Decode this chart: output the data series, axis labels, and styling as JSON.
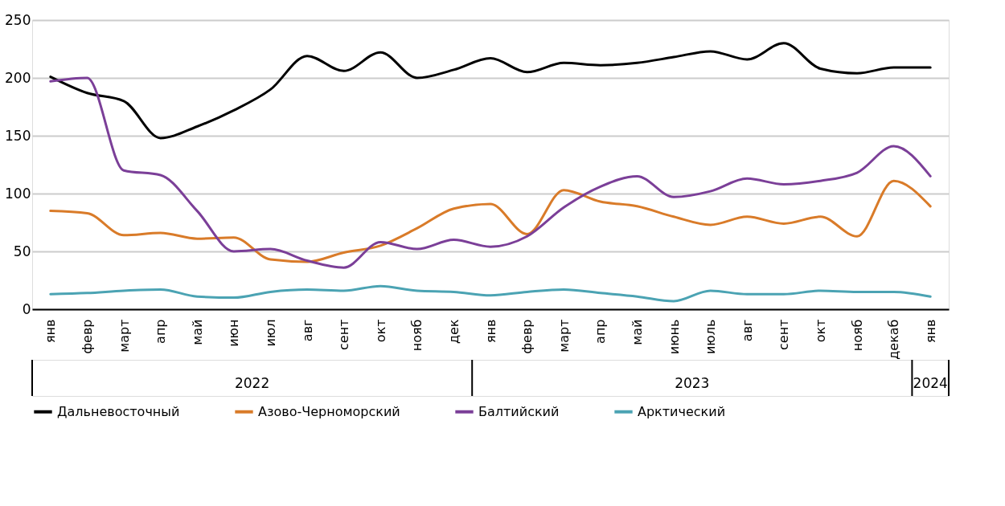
{
  "chart_data": {
    "type": "line",
    "categories": [
      "янв",
      "февр",
      "март",
      "апр",
      "май",
      "июн",
      "июл",
      "авг",
      "сент",
      "окт",
      "нояб",
      "дек",
      "янв",
      "февр",
      "март",
      "апр",
      "май",
      "июнь",
      "июль",
      "авг",
      "сент",
      "окт",
      "нояб",
      "декаб",
      "янв"
    ],
    "series": [
      {
        "name": "Дальневосточный",
        "color": "#000000",
        "values": [
          201,
          187,
          180,
          148,
          158,
          172,
          190,
          219,
          206,
          222,
          200,
          207,
          217,
          205,
          213,
          211,
          213,
          218,
          223,
          216,
          230,
          208,
          204,
          209,
          209
        ]
      },
      {
        "name": "Азово-Черноморский",
        "color": "#d97b29",
        "values": [
          85,
          83,
          64,
          66,
          61,
          62,
          43,
          41,
          49,
          55,
          70,
          87,
          91,
          65,
          103,
          93,
          89,
          80,
          73,
          80,
          74,
          80,
          63,
          111,
          89
        ]
      },
      {
        "name": "Балтийский",
        "color": "#7b3f98",
        "values": [
          197,
          200,
          120,
          116,
          85,
          50,
          52,
          42,
          36,
          58,
          52,
          60,
          54,
          63,
          88,
          106,
          115,
          97,
          102,
          113,
          108,
          111,
          118,
          141,
          115
        ]
      },
      {
        "name": "Арктический",
        "color": "#4ba3b3",
        "values": [
          13,
          14,
          16,
          17,
          11,
          10,
          15,
          17,
          16,
          20,
          16,
          15,
          12,
          15,
          17,
          14,
          11,
          7,
          16,
          13,
          13,
          16,
          15,
          15,
          11
        ]
      }
    ],
    "annotations": [
      "2022",
      "2023",
      "2024"
    ],
    "ylim": [
      0,
      250
    ],
    "yticks": [
      0,
      50,
      100,
      150,
      200,
      250
    ],
    "grid": "y",
    "legend": "bottom",
    "marker": "none",
    "line_style": "solid"
  }
}
